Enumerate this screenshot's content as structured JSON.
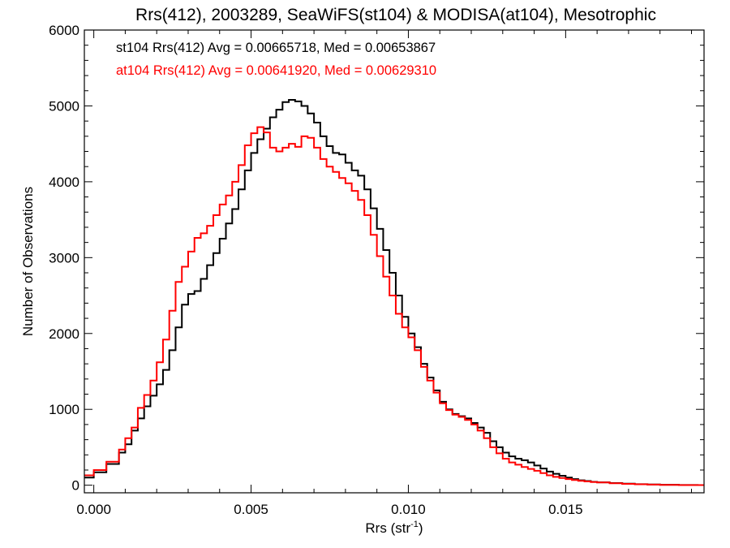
{
  "chart_data": {
    "type": "line",
    "title": "Rrs(412), 2003289, SeaWiFS(st104) & MODISA(at104), Mesotrophic",
    "xlabel_base": "Rrs (str",
    "xlabel_sup": "-1",
    "xlabel_end": ")",
    "ylabel": "Number of Observations",
    "xlim": [
      -0.0003,
      0.0194
    ],
    "ylim": [
      -100,
      6000
    ],
    "xticks": [
      0.0,
      0.005,
      0.01,
      0.015
    ],
    "xtick_labels": [
      "0.000",
      "0.005",
      "0.010",
      "0.015"
    ],
    "yticks": [
      0,
      1000,
      2000,
      3000,
      4000,
      5000,
      6000
    ],
    "ytick_labels": [
      "0",
      "1000",
      "2000",
      "3000",
      "4000",
      "5000",
      "6000"
    ],
    "step": "histogram",
    "series": [
      {
        "name": "st104",
        "label": "st104 Rrs(412) Avg = 0.00665718, Med = 0.00653867",
        "color": "#000000",
        "points": [
          [
            -0.0003,
            100
          ],
          [
            0.0,
            170
          ],
          [
            0.0004,
            280
          ],
          [
            0.0008,
            430
          ],
          [
            0.001,
            540
          ],
          [
            0.0012,
            720
          ],
          [
            0.0014,
            880
          ],
          [
            0.0016,
            1040
          ],
          [
            0.0018,
            1180
          ],
          [
            0.002,
            1330
          ],
          [
            0.0022,
            1520
          ],
          [
            0.0024,
            1780
          ],
          [
            0.0026,
            2080
          ],
          [
            0.0028,
            2380
          ],
          [
            0.003,
            2520
          ],
          [
            0.0032,
            2560
          ],
          [
            0.0034,
            2720
          ],
          [
            0.0036,
            2900
          ],
          [
            0.0038,
            3060
          ],
          [
            0.004,
            3250
          ],
          [
            0.0042,
            3450
          ],
          [
            0.0044,
            3640
          ],
          [
            0.0046,
            3900
          ],
          [
            0.0048,
            4150
          ],
          [
            0.005,
            4380
          ],
          [
            0.0052,
            4560
          ],
          [
            0.0054,
            4700
          ],
          [
            0.0056,
            4850
          ],
          [
            0.0058,
            4950
          ],
          [
            0.006,
            5050
          ],
          [
            0.0062,
            5080
          ],
          [
            0.0064,
            5060
          ],
          [
            0.0066,
            5000
          ],
          [
            0.0068,
            4900
          ],
          [
            0.007,
            4780
          ],
          [
            0.0072,
            4600
          ],
          [
            0.0074,
            4470
          ],
          [
            0.0076,
            4380
          ],
          [
            0.0078,
            4360
          ],
          [
            0.008,
            4250
          ],
          [
            0.0082,
            4150
          ],
          [
            0.0084,
            4080
          ],
          [
            0.0086,
            3900
          ],
          [
            0.0088,
            3650
          ],
          [
            0.009,
            3380
          ],
          [
            0.0092,
            3100
          ],
          [
            0.0094,
            2800
          ],
          [
            0.0096,
            2500
          ],
          [
            0.0098,
            2220
          ],
          [
            0.01,
            2000
          ],
          [
            0.0102,
            1820
          ],
          [
            0.0104,
            1600
          ],
          [
            0.0106,
            1420
          ],
          [
            0.0108,
            1250
          ],
          [
            0.011,
            1100
          ],
          [
            0.0112,
            1000
          ],
          [
            0.0114,
            940
          ],
          [
            0.0116,
            910
          ],
          [
            0.0118,
            880
          ],
          [
            0.012,
            820
          ],
          [
            0.0122,
            760
          ],
          [
            0.0124,
            690
          ],
          [
            0.0126,
            580
          ],
          [
            0.0128,
            500
          ],
          [
            0.013,
            430
          ],
          [
            0.0132,
            380
          ],
          [
            0.0134,
            350
          ],
          [
            0.0136,
            330
          ],
          [
            0.0138,
            300
          ],
          [
            0.014,
            260
          ],
          [
            0.0142,
            220
          ],
          [
            0.0144,
            180
          ],
          [
            0.0146,
            150
          ],
          [
            0.0148,
            125
          ],
          [
            0.015,
            100
          ],
          [
            0.0152,
            80
          ],
          [
            0.0154,
            65
          ],
          [
            0.0156,
            55
          ],
          [
            0.0158,
            45
          ],
          [
            0.016,
            38
          ],
          [
            0.0164,
            28
          ],
          [
            0.0168,
            20
          ],
          [
            0.0172,
            14
          ],
          [
            0.0176,
            9
          ],
          [
            0.018,
            6
          ],
          [
            0.0186,
            3
          ],
          [
            0.0192,
            1
          ]
        ]
      },
      {
        "name": "at104",
        "label": "at104 Rrs(412) Avg = 0.00641920, Med = 0.00629310",
        "color": "#ff0000",
        "points": [
          [
            -0.0003,
            130
          ],
          [
            0.0,
            200
          ],
          [
            0.0004,
            310
          ],
          [
            0.0008,
            470
          ],
          [
            0.001,
            620
          ],
          [
            0.0012,
            760
          ],
          [
            0.0014,
            1020
          ],
          [
            0.0016,
            1190
          ],
          [
            0.0018,
            1380
          ],
          [
            0.002,
            1620
          ],
          [
            0.0022,
            1920
          ],
          [
            0.0024,
            2300
          ],
          [
            0.0026,
            2680
          ],
          [
            0.0028,
            2880
          ],
          [
            0.003,
            3080
          ],
          [
            0.0032,
            3260
          ],
          [
            0.0034,
            3320
          ],
          [
            0.0036,
            3420
          ],
          [
            0.0038,
            3560
          ],
          [
            0.004,
            3700
          ],
          [
            0.0042,
            3820
          ],
          [
            0.0044,
            4000
          ],
          [
            0.0046,
            4220
          ],
          [
            0.0048,
            4480
          ],
          [
            0.005,
            4640
          ],
          [
            0.0052,
            4720
          ],
          [
            0.0054,
            4650
          ],
          [
            0.0056,
            4450
          ],
          [
            0.0058,
            4400
          ],
          [
            0.006,
            4450
          ],
          [
            0.0062,
            4500
          ],
          [
            0.0064,
            4460
          ],
          [
            0.0066,
            4600
          ],
          [
            0.0068,
            4580
          ],
          [
            0.007,
            4450
          ],
          [
            0.0072,
            4300
          ],
          [
            0.0074,
            4200
          ],
          [
            0.0076,
            4130
          ],
          [
            0.0078,
            4050
          ],
          [
            0.008,
            3980
          ],
          [
            0.0082,
            3880
          ],
          [
            0.0084,
            3760
          ],
          [
            0.0086,
            3560
          ],
          [
            0.0088,
            3300
          ],
          [
            0.009,
            3020
          ],
          [
            0.0092,
            2750
          ],
          [
            0.0094,
            2500
          ],
          [
            0.0096,
            2260
          ],
          [
            0.0098,
            2080
          ],
          [
            0.01,
            1950
          ],
          [
            0.0102,
            1780
          ],
          [
            0.0104,
            1560
          ],
          [
            0.0106,
            1380
          ],
          [
            0.0108,
            1220
          ],
          [
            0.011,
            1080
          ],
          [
            0.0112,
            990
          ],
          [
            0.0114,
            930
          ],
          [
            0.0116,
            900
          ],
          [
            0.0118,
            860
          ],
          [
            0.012,
            800
          ],
          [
            0.0122,
            720
          ],
          [
            0.0124,
            620
          ],
          [
            0.0126,
            500
          ],
          [
            0.0128,
            420
          ],
          [
            0.013,
            350
          ],
          [
            0.0132,
            300
          ],
          [
            0.0134,
            270
          ],
          [
            0.0136,
            240
          ],
          [
            0.0138,
            215
          ],
          [
            0.014,
            190
          ],
          [
            0.0142,
            160
          ],
          [
            0.0144,
            130
          ],
          [
            0.0146,
            110
          ],
          [
            0.0148,
            95
          ],
          [
            0.015,
            80
          ],
          [
            0.0152,
            68
          ],
          [
            0.0154,
            58
          ],
          [
            0.0156,
            50
          ],
          [
            0.0158,
            42
          ],
          [
            0.016,
            36
          ],
          [
            0.0164,
            26
          ],
          [
            0.0168,
            18
          ],
          [
            0.0172,
            12
          ],
          [
            0.0176,
            8
          ],
          [
            0.018,
            5
          ],
          [
            0.0186,
            2
          ],
          [
            0.0192,
            1
          ]
        ]
      }
    ]
  }
}
